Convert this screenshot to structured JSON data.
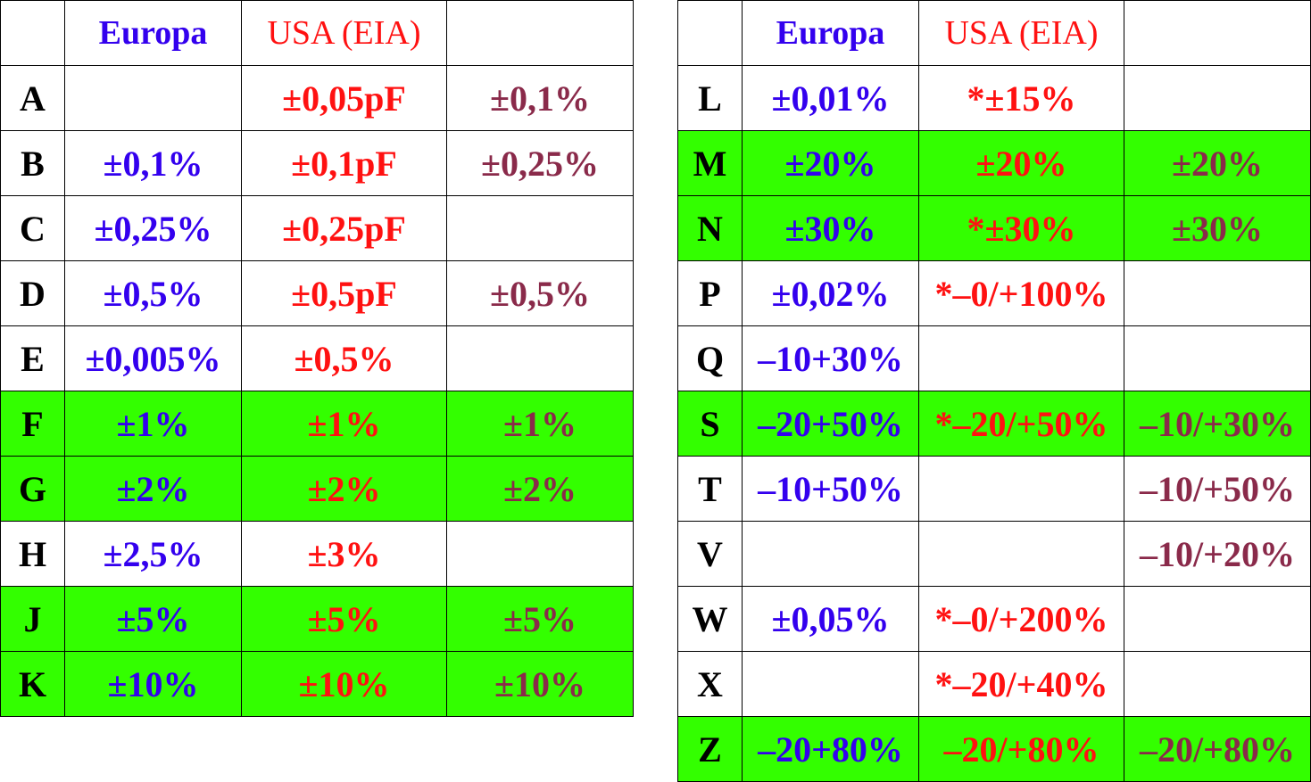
{
  "colors": {
    "highlight_row": "#33ff00",
    "europa_text": "#3300ee",
    "usa_text": "#ff1111",
    "extra_text": "#8a2a4a",
    "code_text": "#000000"
  },
  "headers": {
    "europa": "Europa",
    "usa": "USA (EIA)"
  },
  "left_table": {
    "rows": [
      {
        "code": "A",
        "europa": "",
        "usa": "±0,05pF",
        "extra": "±0,1%",
        "highlight": false
      },
      {
        "code": "B",
        "europa": "±0,1%",
        "usa": "±0,1pF",
        "extra": "±0,25%",
        "highlight": false
      },
      {
        "code": "C",
        "europa": "±0,25%",
        "usa": "±0,25pF",
        "extra": "",
        "highlight": false
      },
      {
        "code": "D",
        "europa": "±0,5%",
        "usa": "±0,5pF",
        "extra": "±0,5%",
        "highlight": false
      },
      {
        "code": "E",
        "europa": "±0,005%",
        "usa": "±0,5%",
        "extra": "",
        "highlight": false
      },
      {
        "code": "F",
        "europa": "±1%",
        "usa": "±1%",
        "extra": "±1%",
        "highlight": true
      },
      {
        "code": "G",
        "europa": "±2%",
        "usa": "±2%",
        "extra": "±2%",
        "highlight": true
      },
      {
        "code": "H",
        "europa": "±2,5%",
        "usa": "±3%",
        "extra": "",
        "highlight": false
      },
      {
        "code": "J",
        "europa": "±5%",
        "usa": "±5%",
        "extra": "±5%",
        "highlight": true
      },
      {
        "code": "K",
        "europa": "±10%",
        "usa": "±10%",
        "extra": "±10%",
        "highlight": true
      }
    ]
  },
  "right_table": {
    "rows": [
      {
        "code": "L",
        "europa": "±0,01%",
        "usa": "*±15%",
        "extra": "",
        "highlight": false
      },
      {
        "code": "M",
        "europa": "±20%",
        "usa": "±20%",
        "extra": "±20%",
        "highlight": true
      },
      {
        "code": "N",
        "europa": "±30%",
        "usa": "*±30%",
        "extra": "±30%",
        "highlight": true
      },
      {
        "code": "P",
        "europa": "±0,02%",
        "usa": "*–0/+100%",
        "extra": "",
        "highlight": false
      },
      {
        "code": "Q",
        "europa": "–10+30%",
        "usa": "",
        "extra": "",
        "highlight": false
      },
      {
        "code": "S",
        "europa": "–20+50%",
        "usa": "*–20/+50%",
        "extra": "–10/+30%",
        "highlight": true
      },
      {
        "code": "T",
        "europa": "–10+50%",
        "usa": "",
        "extra": "–10/+50%",
        "highlight": false
      },
      {
        "code": "V",
        "europa": "",
        "usa": "",
        "extra": "–10/+20%",
        "highlight": false
      },
      {
        "code": "W",
        "europa": "±0,05%",
        "usa": "*–0/+200%",
        "extra": "",
        "highlight": false
      },
      {
        "code": "X",
        "europa": "",
        "usa": "*–20/+40%",
        "extra": "",
        "highlight": false
      },
      {
        "code": "Z",
        "europa": "–20+80%",
        "usa": "–20/+80%",
        "extra": "–20/+80%",
        "highlight": true
      }
    ]
  }
}
